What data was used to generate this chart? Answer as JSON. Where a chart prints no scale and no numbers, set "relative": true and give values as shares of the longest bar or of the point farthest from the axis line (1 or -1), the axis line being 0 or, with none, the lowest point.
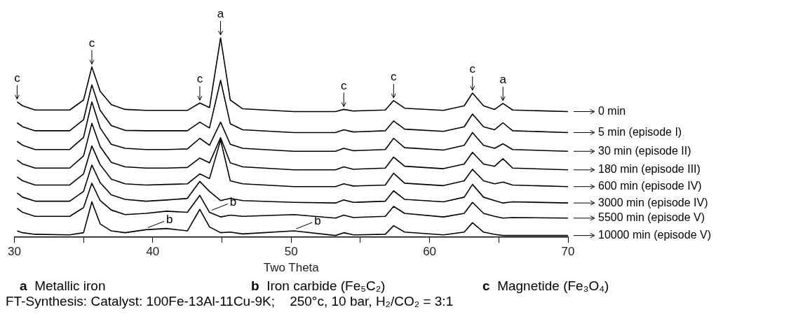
{
  "chart_data": {
    "type": "line",
    "relative": true,
    "xlabel": "Two Theta",
    "xlim": [
      30,
      70
    ],
    "xticks": [
      30,
      {
        "value": 35,
        "label": null
      },
      40,
      {
        "value": 45,
        "label": null
      },
      50,
      {
        "value": 55,
        "label": null
      },
      60,
      {
        "value": 65,
        "label": null
      },
      70
    ],
    "tick_labels": "x",
    "grid": false,
    "legend": "right",
    "marker": "none",
    "line_style": "solid",
    "x": [
      30.2,
      30.6,
      31.5,
      34,
      35,
      35.6,
      36.2,
      37,
      38,
      39.5,
      41,
      42.5,
      43.4,
      44.1,
      44.9,
      45.6,
      46.5,
      50.2,
      53.2,
      53.8,
      54.5,
      56.8,
      57.4,
      58.2,
      61,
      62.5,
      63.1,
      63.9,
      64.7,
      65.3,
      66,
      70
    ],
    "series": [
      {
        "name": "0 min",
        "color": "#000000",
        "values": [
          0.679,
          0.659,
          0.638,
          0.638,
          0.688,
          0.854,
          0.732,
          0.665,
          0.641,
          0.636,
          0.636,
          0.636,
          0.673,
          0.65,
          1,
          0.688,
          0.644,
          0.63,
          0.63,
          0.641,
          0.633,
          0.638,
          0.685,
          0.647,
          0.636,
          0.659,
          0.723,
          0.659,
          0.641,
          0.671,
          0.638,
          0.63
        ]
      },
      {
        "name": "5 min (episode I)",
        "color": "#000000",
        "values": [
          0.574,
          0.554,
          0.534,
          0.534,
          0.589,
          0.764,
          0.636,
          0.56,
          0.536,
          0.534,
          0.534,
          0.534,
          0.577,
          0.548,
          0.787,
          0.569,
          0.539,
          0.525,
          0.525,
          0.539,
          0.528,
          0.534,
          0.583,
          0.542,
          0.531,
          0.554,
          0.618,
          0.554,
          0.539,
          0.574,
          0.534,
          0.525
        ]
      },
      {
        "name": "30 min (episode II)",
        "color": "#000000",
        "values": [
          0.481,
          0.461,
          0.44,
          0.44,
          0.501,
          0.679,
          0.548,
          0.466,
          0.446,
          0.44,
          0.44,
          0.443,
          0.496,
          0.461,
          0.577,
          0.466,
          0.446,
          0.431,
          0.431,
          0.446,
          0.434,
          0.44,
          0.496,
          0.449,
          0.437,
          0.461,
          0.525,
          0.461,
          0.446,
          0.469,
          0.44,
          0.431
        ]
      },
      {
        "name": "180 min (episode III)",
        "color": "#000000",
        "values": [
          0.388,
          0.367,
          0.347,
          0.347,
          0.408,
          0.571,
          0.455,
          0.376,
          0.353,
          0.347,
          0.347,
          0.35,
          0.397,
          0.373,
          0.499,
          0.373,
          0.353,
          0.338,
          0.338,
          0.353,
          0.341,
          0.347,
          0.402,
          0.356,
          0.344,
          0.367,
          0.426,
          0.367,
          0.356,
          0.394,
          0.347,
          0.338
        ]
      },
      {
        "name": "600 min (episode IV)",
        "color": "#000000",
        "values": [
          0.303,
          0.283,
          0.262,
          0.262,
          0.318,
          0.458,
          0.364,
          0.292,
          0.268,
          0.262,
          0.265,
          0.268,
          0.318,
          0.294,
          0.487,
          0.283,
          0.268,
          0.254,
          0.254,
          0.268,
          0.257,
          0.262,
          0.321,
          0.271,
          0.259,
          0.283,
          0.341,
          0.283,
          0.268,
          0.277,
          0.262,
          0.254
        ]
      },
      {
        "name": "3000 min (episode IV)",
        "color": "#000000",
        "values": [
          0.222,
          0.201,
          0.181,
          0.181,
          0.23,
          0.362,
          0.274,
          0.213,
          0.19,
          0.181,
          0.187,
          0.195,
          0.28,
          0.23,
          0.184,
          0.195,
          0.184,
          0.175,
          0.172,
          0.187,
          0.175,
          0.181,
          0.233,
          0.19,
          0.178,
          0.201,
          0.265,
          0.201,
          0.184,
          0.172,
          0.178,
          0.172
        ]
      },
      {
        "name": "5500 min (episode V)",
        "color": "#000000",
        "values": [
          0.146,
          0.125,
          0.105,
          0.105,
          0.149,
          0.271,
          0.184,
          0.137,
          0.114,
          0.12,
          0.131,
          0.125,
          0.21,
          0.125,
          0.102,
          0.111,
          0.105,
          0.114,
          0.096,
          0.111,
          0.099,
          0.105,
          0.155,
          0.12,
          0.102,
          0.12,
          0.175,
          0.12,
          0.105,
          0.096,
          0.099,
          0.096
        ]
      },
      {
        "name": "10000 min (episode V)",
        "color": "#000000",
        "values": [
          0.032,
          0.023,
          0.015,
          0.012,
          0.023,
          0.178,
          0.067,
          0.032,
          0.023,
          0.038,
          0.044,
          0.032,
          0.14,
          0.052,
          0.023,
          0.026,
          0.017,
          0.032,
          0.009,
          0.023,
          0.012,
          0.015,
          0.058,
          0.026,
          0.012,
          0.026,
          0.073,
          0.026,
          0.015,
          0.009,
          0.009,
          0.009
        ]
      }
    ],
    "annotations": [
      {
        "text": "c",
        "x": 30.2,
        "y": 0.679
      },
      {
        "text": "c",
        "x": 35.6,
        "y": 0.854
      },
      {
        "text": "c",
        "x": 43.4,
        "y": 0.673
      },
      {
        "text": "a",
        "x": 44.9,
        "y": 1
      },
      {
        "text": "c",
        "x": 53.8,
        "y": 0.641
      },
      {
        "text": "c",
        "x": 57.4,
        "y": 0.685
      },
      {
        "text": "c",
        "x": 63.1,
        "y": 0.723
      },
      {
        "text": "a",
        "x": 65.3,
        "y": 0.671
      },
      {
        "text": "b",
        "x": 39.5,
        "y": 0.038
      },
      {
        "text": "b",
        "x": 44.1,
        "y": 0.125
      },
      {
        "text": "b",
        "x": 50.2,
        "y": 0.032
      },
      "a  Metallic iron",
      "b  Iron carbide (Fe₅C₂)",
      "c  Magnetide (Fe₃O₄)",
      "FT-Synthesis: Catalyst: 100Fe-13Al-11Cu-9K;    250°c, 10 bar, H₂/CO₂ = 3:1"
    ]
  }
}
